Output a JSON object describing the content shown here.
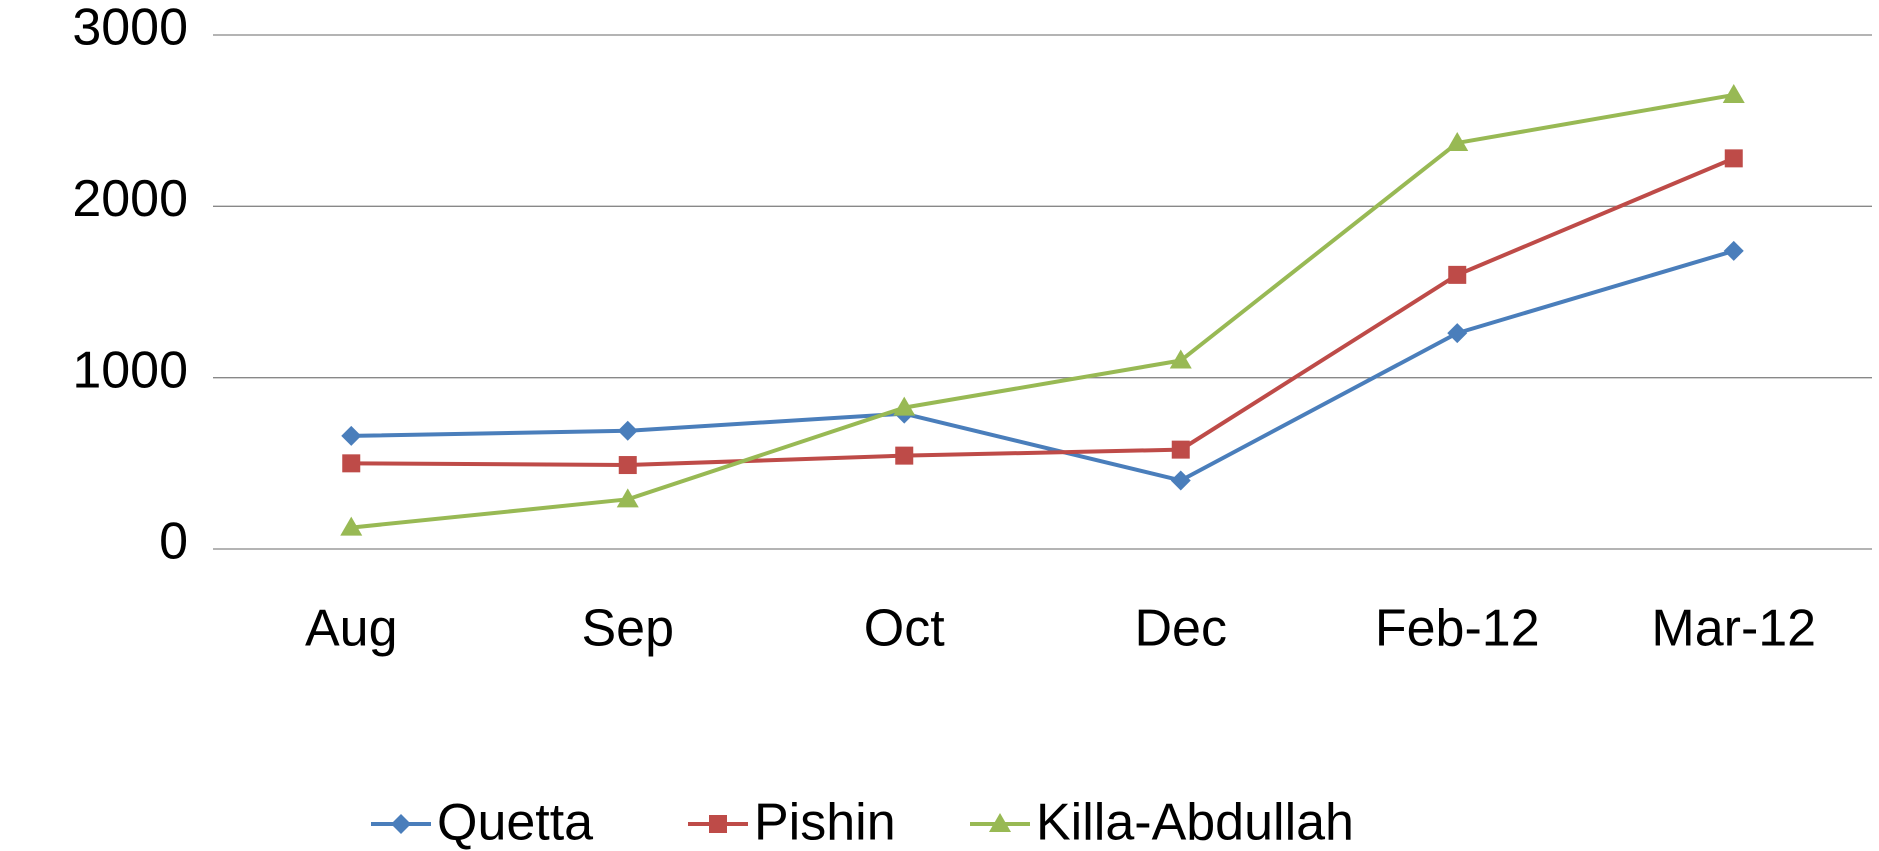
{
  "chart_data": {
    "type": "line",
    "categories": [
      "Aug",
      "Sep",
      "Oct",
      "Dec",
      "Feb-12",
      "Mar-12"
    ],
    "series": [
      {
        "name": "Quetta",
        "color": "#4a7ebb",
        "marker": "diamond",
        "values": [
          660,
          690,
          790,
          400,
          1260,
          1740
        ]
      },
      {
        "name": "Pishin",
        "color": "#be4b48",
        "marker": "square",
        "values": [
          500,
          490,
          545,
          580,
          1600,
          2280
        ]
      },
      {
        "name": "Killa-Abdullah",
        "color": "#98b954",
        "marker": "triangle",
        "values": [
          125,
          290,
          825,
          1100,
          2370,
          2650
        ]
      }
    ],
    "ylim": [
      0,
      3000
    ],
    "yticks": [
      0,
      1000,
      2000,
      3000
    ],
    "grid": true,
    "legend": "bottom"
  }
}
